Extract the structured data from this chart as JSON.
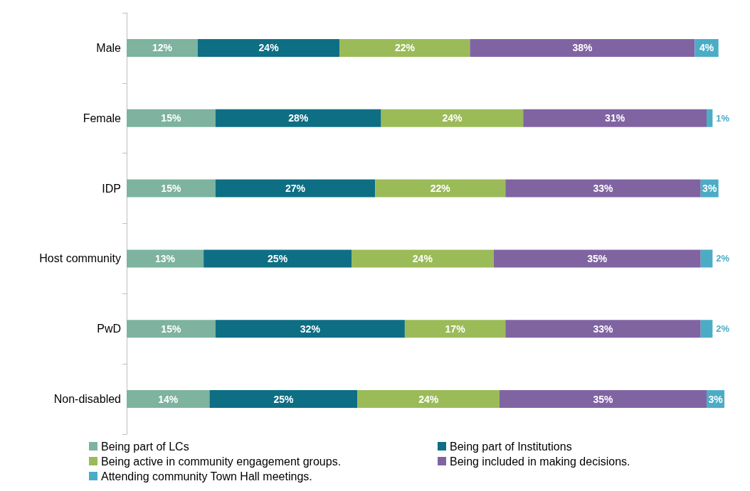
{
  "chart_data": {
    "type": "bar",
    "orientation": "horizontal",
    "stacked": true,
    "categories": [
      "Male",
      "Female",
      "IDP",
      "Host community",
      "PwD",
      "Non-disabled"
    ],
    "series": [
      {
        "name": "Being part of LCs",
        "color": "#7db39f",
        "values": [
          12,
          15,
          15,
          13,
          15,
          14
        ],
        "value_labels": [
          "12%",
          "15%",
          "15%",
          "13%",
          "15%",
          "14%"
        ]
      },
      {
        "name": "Being part of Institutions",
        "color": "#0e6e84",
        "values": [
          24,
          28,
          27,
          25,
          32,
          25
        ],
        "value_labels": [
          "24%",
          "28%",
          "27%",
          "25%",
          "32%",
          "25%"
        ]
      },
      {
        "name": "Being active in community engagement groups.",
        "color": "#9bbb59",
        "values": [
          22,
          24,
          22,
          24,
          17,
          24
        ],
        "value_labels": [
          "22%",
          "24%",
          "22%",
          "24%",
          "17%",
          "24%"
        ]
      },
      {
        "name": "Being included in making decisions.",
        "color": "#8064a2",
        "values": [
          38,
          31,
          33,
          35,
          33,
          35
        ],
        "value_labels": [
          "38%",
          "31%",
          "33%",
          "35%",
          "33%",
          "35%"
        ]
      },
      {
        "name": "Attending community Town Hall meetings.",
        "color": "#4bacc6",
        "values": [
          4,
          1,
          3,
          2,
          2,
          3
        ],
        "value_labels": [
          "4%",
          "1%",
          "3%",
          "2%",
          "2%",
          "3%"
        ]
      }
    ],
    "legend": "bottom"
  }
}
